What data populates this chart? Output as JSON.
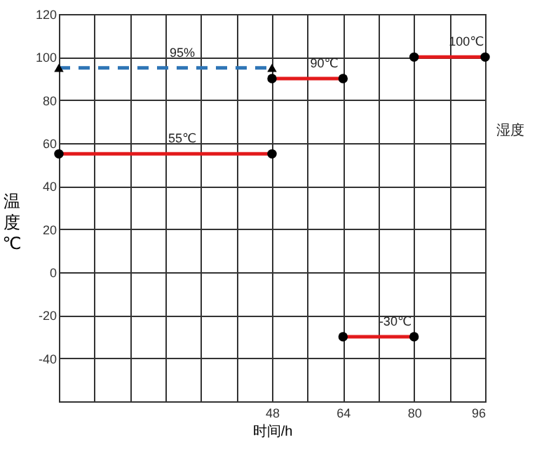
{
  "chart_data": {
    "type": "line",
    "xlabel": "时间/h",
    "ylabel": "温度℃",
    "y2label": "湿度",
    "xlim": [
      0,
      96
    ],
    "ylim": [
      -60,
      120
    ],
    "xticks": [
      {
        "value": 8,
        "label": null
      },
      {
        "value": 16,
        "label": null
      },
      {
        "value": 24,
        "label": null
      },
      {
        "value": 32,
        "label": null
      },
      {
        "value": 40,
        "label": null
      },
      48,
      {
        "value": 56,
        "label": null
      },
      64,
      {
        "value": 72,
        "label": null
      },
      80,
      {
        "value": 88,
        "label": null
      },
      96
    ],
    "yticks": [
      -40,
      -20,
      0,
      20,
      40,
      60,
      80,
      100,
      120
    ],
    "grid": true,
    "marker": "circle",
    "line_style": "solid",
    "series": [
      {
        "name": "95%",
        "color": "#2e75b6",
        "x": [
          0,
          48
        ],
        "values": [
          95,
          95
        ],
        "line_style": "dashed",
        "marker": "triangle"
      },
      {
        "name": "55℃",
        "color": "#e31a1c",
        "x": [
          0,
          48
        ],
        "values": [
          55,
          55
        ]
      },
      {
        "name": "90℃",
        "color": "#e31a1c",
        "x": [
          48,
          64
        ],
        "values": [
          90,
          90
        ]
      },
      {
        "name": "-30℃",
        "color": "#e31a1c",
        "x": [
          64,
          80
        ],
        "values": [
          -30,
          -30
        ]
      },
      {
        "name": "100℃",
        "color": "#e31a1c",
        "x": [
          80,
          96
        ],
        "values": [
          100,
          100
        ]
      }
    ]
  }
}
